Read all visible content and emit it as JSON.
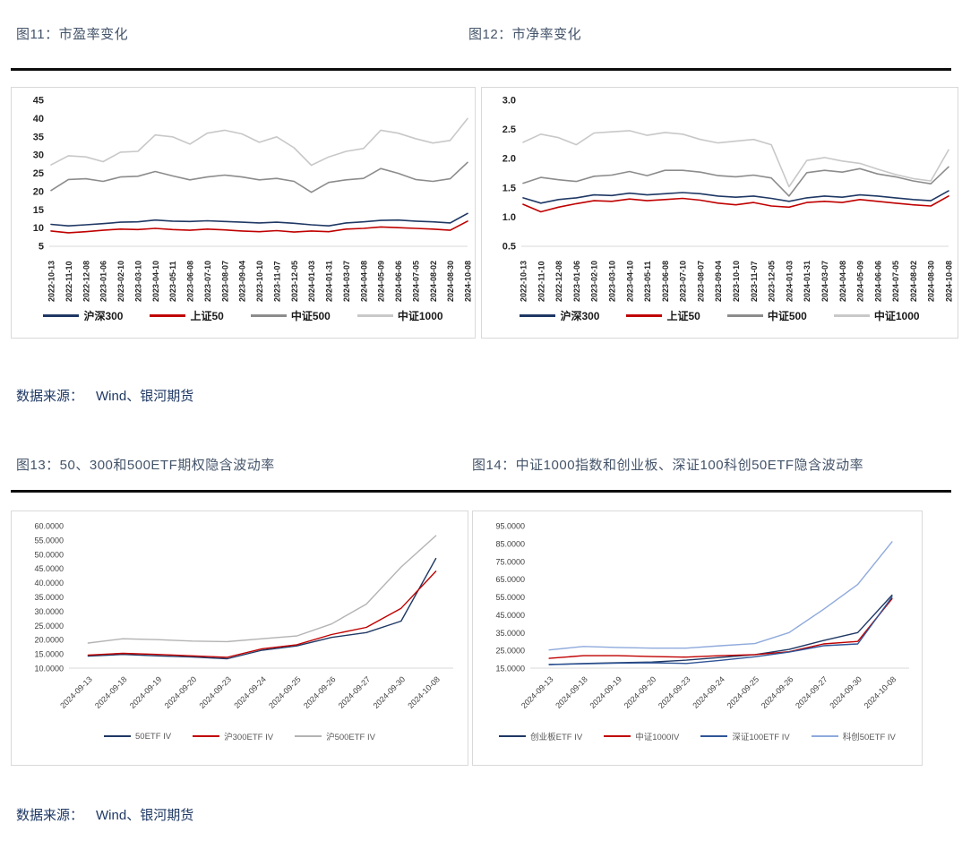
{
  "sections": [
    {
      "source_label": "数据来源：",
      "source_value": "Wind、银河期货"
    },
    {
      "source_label": "数据来源：",
      "source_value": "Wind、银河期货"
    }
  ],
  "chart_data": [
    {
      "id": "fig11",
      "type": "line",
      "title": "图11：市盈率变化",
      "categories": [
        "2022-10-13",
        "2022-11-10",
        "2022-12-08",
        "2023-01-06",
        "2023-02-10",
        "2023-03-10",
        "2023-04-10",
        "2023-05-11",
        "2023-06-08",
        "2023-07-10",
        "2023-08-07",
        "2023-09-04",
        "2023-10-10",
        "2023-11-07",
        "2023-12-05",
        "2024-01-03",
        "2024-01-31",
        "2024-03-07",
        "2024-04-08",
        "2024-05-09",
        "2024-06-06",
        "2024-07-05",
        "2024-08-02",
        "2024-08-30",
        "2024-10-08"
      ],
      "series": [
        {
          "name": "沪深300",
          "color": "#1f3864",
          "values": [
            11.0,
            10.6,
            10.9,
            11.2,
            11.6,
            11.7,
            12.2,
            11.9,
            11.8,
            12.0,
            11.8,
            11.6,
            11.4,
            11.6,
            11.3,
            10.9,
            10.6,
            11.4,
            11.7,
            12.1,
            12.2,
            11.9,
            11.7,
            11.4,
            14.0
          ]
        },
        {
          "name": "上证50",
          "color": "#c00000",
          "values": [
            9.2,
            8.7,
            9.0,
            9.4,
            9.7,
            9.6,
            9.9,
            9.6,
            9.4,
            9.7,
            9.5,
            9.2,
            9.0,
            9.3,
            8.9,
            9.2,
            9.0,
            9.7,
            9.9,
            10.3,
            10.1,
            9.9,
            9.7,
            9.4,
            11.9
          ]
        },
        {
          "name": "中证500",
          "color": "#8c8c8c",
          "values": [
            20.3,
            23.3,
            23.5,
            22.8,
            24.0,
            24.2,
            25.5,
            24.3,
            23.2,
            24.0,
            24.5,
            24.0,
            23.2,
            23.6,
            22.8,
            19.8,
            22.5,
            23.2,
            23.6,
            26.3,
            25.0,
            23.3,
            22.8,
            23.5,
            28.0
          ]
        },
        {
          "name": "中证1000",
          "color": "#c8c8c8",
          "values": [
            27.3,
            29.8,
            29.5,
            28.2,
            30.8,
            31.0,
            35.5,
            35.0,
            33.0,
            36.0,
            36.8,
            35.8,
            33.5,
            35.0,
            32.0,
            27.2,
            29.5,
            31.0,
            31.8,
            36.8,
            36.0,
            34.5,
            33.3,
            34.0,
            40.0
          ]
        }
      ],
      "ylim": [
        5,
        45
      ],
      "yticks": [
        5,
        10,
        15,
        20,
        25,
        30,
        35,
        40,
        45
      ],
      "ytick_labels": [
        "5",
        "10",
        "15",
        "20",
        "25",
        "30",
        "35",
        "40",
        "45"
      ],
      "xtick_rotation": 90,
      "grid": false,
      "legend_position": "bottom"
    },
    {
      "id": "fig12",
      "type": "line",
      "title": "图12：市净率变化",
      "categories": [
        "2022-10-13",
        "2022-11-10",
        "2022-12-08",
        "2023-01-06",
        "2023-02-10",
        "2023-03-10",
        "2023-04-10",
        "2023-05-11",
        "2023-06-08",
        "2023-07-10",
        "2023-08-07",
        "2023-09-04",
        "2023-10-10",
        "2023-11-07",
        "2023-12-05",
        "2024-01-03",
        "2024-01-31",
        "2024-03-07",
        "2024-04-08",
        "2024-05-09",
        "2024-06-06",
        "2024-07-05",
        "2024-08-02",
        "2024-08-30",
        "2024-10-08"
      ],
      "series": [
        {
          "name": "沪深300",
          "color": "#1f3864",
          "values": [
            1.33,
            1.24,
            1.3,
            1.33,
            1.38,
            1.37,
            1.41,
            1.38,
            1.4,
            1.42,
            1.4,
            1.36,
            1.34,
            1.36,
            1.32,
            1.27,
            1.33,
            1.36,
            1.34,
            1.38,
            1.36,
            1.33,
            1.3,
            1.28,
            1.45
          ]
        },
        {
          "name": "上证50",
          "color": "#c00000",
          "values": [
            1.22,
            1.09,
            1.17,
            1.23,
            1.28,
            1.27,
            1.31,
            1.28,
            1.3,
            1.32,
            1.29,
            1.24,
            1.21,
            1.25,
            1.19,
            1.17,
            1.25,
            1.27,
            1.25,
            1.3,
            1.27,
            1.24,
            1.21,
            1.19,
            1.36
          ]
        },
        {
          "name": "中证500",
          "color": "#8c8c8c",
          "values": [
            1.58,
            1.68,
            1.64,
            1.61,
            1.7,
            1.72,
            1.78,
            1.71,
            1.8,
            1.8,
            1.77,
            1.71,
            1.69,
            1.72,
            1.67,
            1.36,
            1.76,
            1.8,
            1.77,
            1.83,
            1.74,
            1.69,
            1.62,
            1.57,
            1.86
          ]
        },
        {
          "name": "中证1000",
          "color": "#c8c8c8",
          "values": [
            2.28,
            2.42,
            2.36,
            2.24,
            2.44,
            2.46,
            2.48,
            2.4,
            2.45,
            2.42,
            2.33,
            2.27,
            2.3,
            2.33,
            2.24,
            1.52,
            1.97,
            2.02,
            1.96,
            1.92,
            1.82,
            1.73,
            1.66,
            1.62,
            2.15
          ]
        }
      ],
      "ylim": [
        0.5,
        3.0
      ],
      "yticks": [
        0.5,
        1.0,
        1.5,
        2.0,
        2.5,
        3.0
      ],
      "ytick_labels": [
        "0.5",
        "1.0",
        "1.5",
        "2.0",
        "2.5",
        "3.0"
      ],
      "xtick_rotation": 90,
      "grid": false,
      "legend_position": "bottom"
    },
    {
      "id": "fig13",
      "type": "line",
      "title": "图13：50、300和500ETF期权隐含波动率",
      "categories": [
        "2024-09-13",
        "2024-09-18",
        "2024-09-19",
        "2024-09-20",
        "2024-09-23",
        "2024-09-24",
        "2024-09-25",
        "2024-09-26",
        "2024-09-27",
        "2024-09-30",
        "2024-10-08"
      ],
      "series": [
        {
          "name": "50ETF IV",
          "color": "#1f3864",
          "values": [
            14.2,
            14.8,
            14.3,
            13.9,
            13.3,
            16.3,
            17.8,
            20.8,
            22.5,
            26.5,
            48.5
          ]
        },
        {
          "name": "沪300ETF IV",
          "color": "#c00000",
          "values": [
            14.6,
            15.2,
            14.8,
            14.3,
            13.8,
            16.8,
            18.2,
            21.8,
            24.3,
            31.0,
            44.0
          ]
        },
        {
          "name": "沪500ETF IV",
          "color": "#b3b3b3",
          "values": [
            18.8,
            20.3,
            20.0,
            19.5,
            19.3,
            20.3,
            21.3,
            25.5,
            32.5,
            45.5,
            56.5
          ]
        }
      ],
      "ylim": [
        10,
        60
      ],
      "yticks": [
        10,
        15,
        20,
        25,
        30,
        35,
        40,
        45,
        50,
        55,
        60
      ],
      "ytick_labels": [
        "10.0000",
        "15.0000",
        "20.0000",
        "25.0000",
        "30.0000",
        "35.0000",
        "40.0000",
        "45.0000",
        "50.0000",
        "55.0000",
        "60.0000"
      ],
      "xtick_rotation": 45,
      "grid": false,
      "legend_position": "bottom"
    },
    {
      "id": "fig14",
      "type": "line",
      "title": "图14：中证1000指数和创业板、深证100科创50ETF隐含波动率",
      "categories": [
        "2024-09-13",
        "2024-09-18",
        "2024-09-19",
        "2024-09-20",
        "2024-09-23",
        "2024-09-24",
        "2024-09-25",
        "2024-09-26",
        "2024-09-27",
        "2024-09-30",
        "2024-10-08"
      ],
      "series": [
        {
          "name": "创业板ETF IV",
          "color": "#1f3864",
          "values": [
            17.0,
            17.6,
            18.0,
            18.4,
            19.5,
            21.0,
            22.6,
            25.5,
            30.5,
            35.0,
            56.0
          ]
        },
        {
          "name": "中证1000IV",
          "color": "#c00000",
          "values": [
            20.5,
            22.0,
            22.0,
            21.5,
            21.2,
            22.0,
            22.6,
            24.2,
            28.6,
            30.0,
            54.0
          ]
        },
        {
          "name": "深证100ETF IV",
          "color": "#2f5597",
          "values": [
            17.0,
            17.4,
            17.8,
            18.0,
            17.6,
            19.4,
            21.4,
            24.0,
            27.6,
            28.6,
            55.0
          ]
        },
        {
          "name": "科创50ETF IV",
          "color": "#8faadc",
          "values": [
            25.2,
            27.2,
            26.6,
            26.2,
            26.2,
            27.6,
            28.8,
            35.0,
            48.0,
            62.0,
            86.0
          ]
        }
      ],
      "ylim": [
        15,
        95
      ],
      "yticks": [
        15,
        25,
        35,
        45,
        55,
        65,
        75,
        85,
        95
      ],
      "ytick_labels": [
        "15.0000",
        "25.0000",
        "35.0000",
        "45.0000",
        "55.0000",
        "65.0000",
        "75.0000",
        "85.0000",
        "95.0000"
      ],
      "xtick_rotation": 45,
      "grid": false,
      "legend_position": "bottom"
    }
  ]
}
